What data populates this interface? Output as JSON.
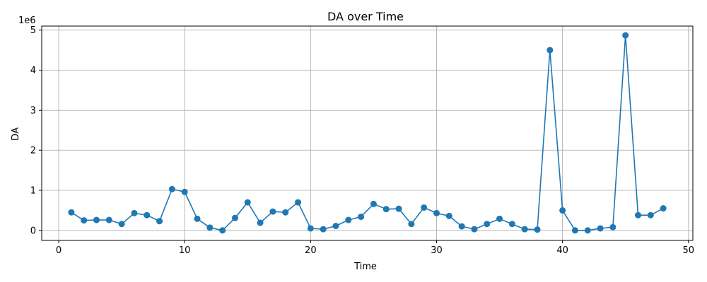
{
  "chart_data": {
    "type": "line",
    "title": "DA over Time",
    "xlabel": "Time",
    "ylabel": "DA",
    "y_offset_label": "1e6",
    "xlim": [
      -1.35,
      50.35
    ],
    "ylim": [
      -250000,
      5100000
    ],
    "x_ticks": [
      0,
      10,
      20,
      30,
      40,
      50
    ],
    "x_tick_labels": [
      "0",
      "10",
      "20",
      "30",
      "40",
      "50"
    ],
    "y_ticks": [
      0,
      1000000,
      2000000,
      3000000,
      4000000,
      5000000
    ],
    "y_tick_labels": [
      "0",
      "1",
      "2",
      "3",
      "4",
      "5"
    ],
    "grid": true,
    "marker": "circle",
    "color": "#1f77b4",
    "series": [
      {
        "x": [
          1,
          2,
          3,
          4,
          5,
          6,
          7,
          8,
          9,
          10,
          11,
          12,
          13,
          14,
          15,
          16,
          17,
          18,
          19,
          20,
          21,
          22,
          23,
          24,
          25,
          26,
          27,
          28,
          29,
          30,
          31,
          32,
          33,
          34,
          35,
          36,
          37,
          38,
          39,
          40,
          41,
          42,
          43,
          44,
          45,
          46,
          47,
          48
        ],
        "values": [
          450000,
          250000,
          260000,
          260000,
          160000,
          430000,
          380000,
          230000,
          1030000,
          960000,
          290000,
          70000,
          0,
          310000,
          700000,
          190000,
          470000,
          450000,
          700000,
          50000,
          30000,
          110000,
          260000,
          340000,
          660000,
          530000,
          540000,
          160000,
          570000,
          430000,
          360000,
          100000,
          30000,
          160000,
          290000,
          160000,
          30000,
          20000,
          4500000,
          500000,
          0,
          0,
          50000,
          80000,
          4870000,
          380000,
          380000,
          550000
        ]
      }
    ]
  }
}
